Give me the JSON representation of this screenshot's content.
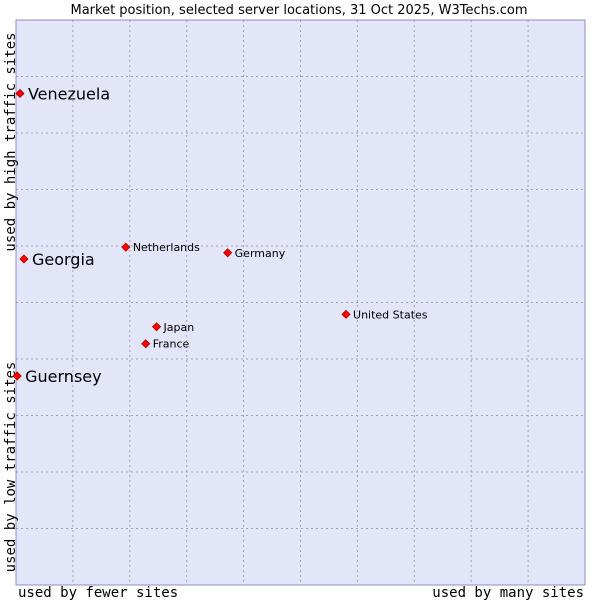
{
  "chart_data": {
    "type": "scatter",
    "title": "Market position, selected server locations, 31 Oct 2025, W3Techs.com",
    "xlabel_left": "used by fewer sites",
    "xlabel_right": "used by many sites",
    "ylabel_bottom": "used by low traffic sites",
    "ylabel_top": "used by high traffic sites",
    "xlim": [
      0,
      100
    ],
    "ylim": [
      0,
      100
    ],
    "grid": true,
    "highlighted": [
      "Venezuela",
      "Georgia",
      "Guernsey"
    ],
    "points": [
      {
        "name": "Venezuela",
        "x": 0.7,
        "y": 87.0
      },
      {
        "name": "Georgia",
        "x": 1.4,
        "y": 57.7
      },
      {
        "name": "Guernsey",
        "x": 0.2,
        "y": 37.0
      },
      {
        "name": "Netherlands",
        "x": 19.3,
        "y": 59.8
      },
      {
        "name": "Germany",
        "x": 37.2,
        "y": 58.8
      },
      {
        "name": "United States",
        "x": 58.0,
        "y": 47.9
      },
      {
        "name": "Japan",
        "x": 24.7,
        "y": 45.7
      },
      {
        "name": "France",
        "x": 22.8,
        "y": 42.7
      }
    ],
    "colors": {
      "background": "#e3e5f8",
      "border": "#8c8cc8",
      "grid": "#a0a0b8",
      "marker": "#ff0000"
    }
  }
}
